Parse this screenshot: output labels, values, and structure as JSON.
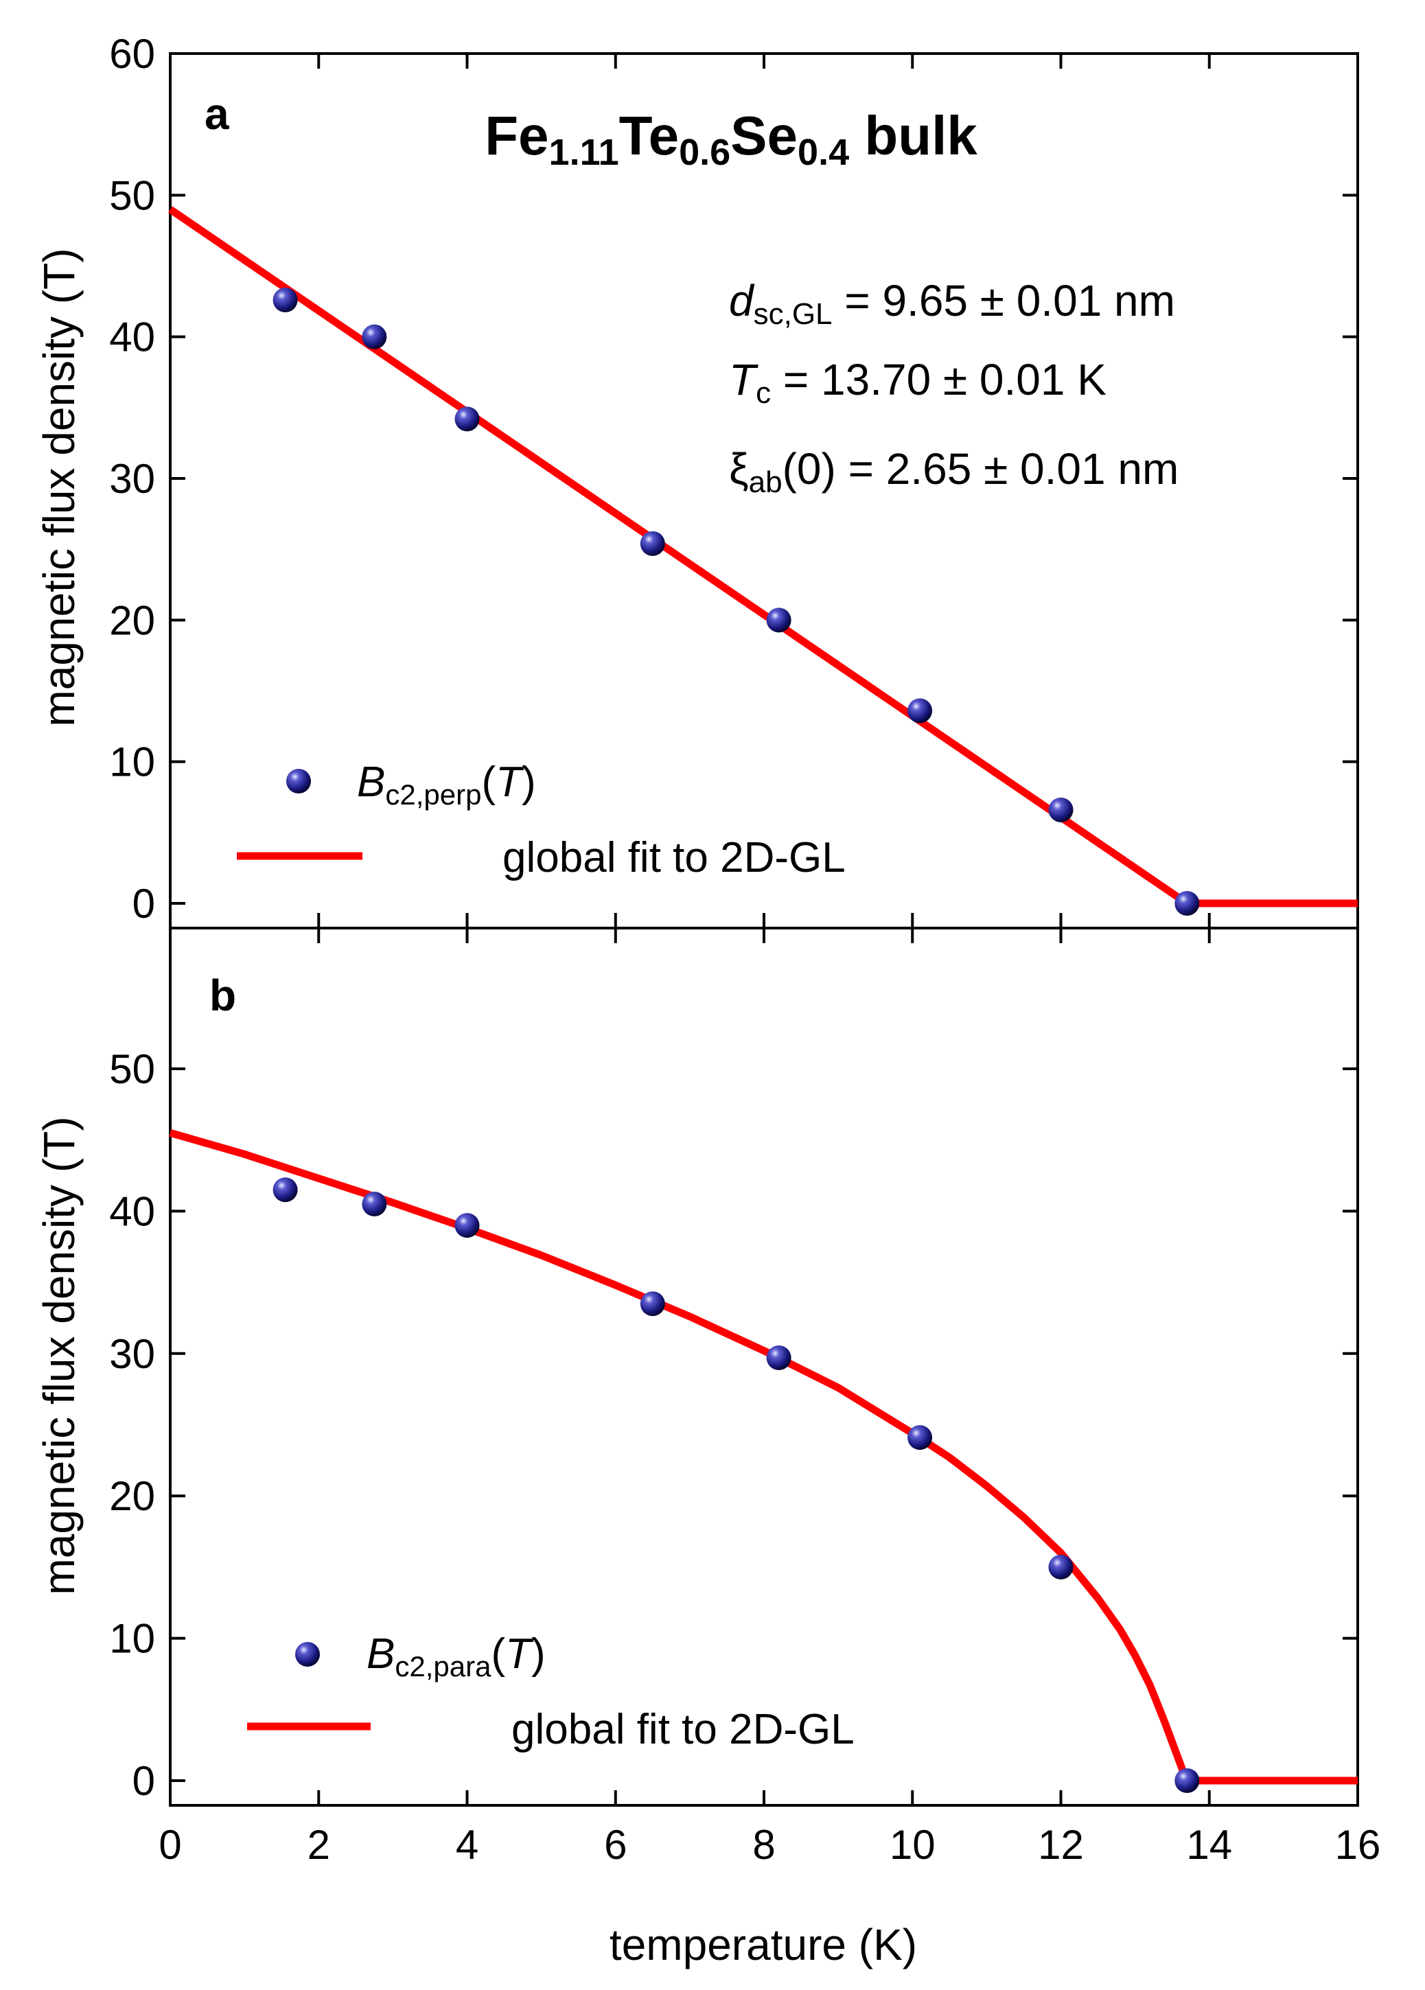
{
  "figure": {
    "title_parts": [
      {
        "text": "Fe",
        "sub": false
      },
      {
        "text": "1.11",
        "sub": true
      },
      {
        "text": "Te",
        "sub": false
      },
      {
        "text": "0.6",
        "sub": true
      },
      {
        "text": "Se",
        "sub": false
      },
      {
        "text": "0.4",
        "sub": true
      },
      {
        "text": " bulk",
        "sub": false
      }
    ],
    "xlabel": "temperature (K)",
    "ylabel": "magnetic flux density (T)",
    "fit_label": "global fit to 2D-GL",
    "annotations": [
      [
        {
          "text": "d",
          "italic": true
        },
        {
          "text": "sc,GL",
          "sub": true
        },
        {
          "text": " = 9.65 ± 0.01 nm"
        }
      ],
      [
        {
          "text": "T",
          "italic": true
        },
        {
          "text": "c",
          "sub": true
        },
        {
          "text": " = 13.70 ± 0.01 K"
        }
      ],
      [
        {
          "text": "ξ"
        },
        {
          "text": "ab",
          "sub": true
        },
        {
          "text": "(0) = 2.65 ± 0.01 nm"
        }
      ]
    ],
    "colors": {
      "points": "#1a1a80",
      "fit": "#ff0000"
    }
  },
  "chart_data": [
    {
      "type": "scatter",
      "panel": "a",
      "xlim": [
        0,
        16
      ],
      "ylim": [
        -2,
        60
      ],
      "xticks": [
        0,
        2,
        4,
        6,
        8,
        10,
        12,
        14,
        16
      ],
      "yticks": [
        0,
        10,
        20,
        30,
        40,
        50,
        60
      ],
      "series": [
        {
          "name_parts": [
            {
              "text": "B",
              "italic": true
            },
            {
              "text": "c2,perp",
              "sub": true
            },
            {
              "text": "("
            },
            {
              "text": "T",
              "italic": true
            },
            {
              "text": ")"
            }
          ],
          "kind": "points",
          "x": [
            1.55,
            2.75,
            4.0,
            6.5,
            8.2,
            10.1,
            12.0,
            13.7
          ],
          "y": [
            42.6,
            40.0,
            34.2,
            25.4,
            20.0,
            13.6,
            6.6,
            0.0
          ]
        },
        {
          "name": "global fit to 2D-GL",
          "kind": "line",
          "x": [
            0,
            13.7,
            16
          ],
          "y": [
            49.0,
            0.0,
            0.0
          ]
        }
      ],
      "legend_position": "bottom-left",
      "grid": false
    },
    {
      "type": "scatter",
      "panel": "b",
      "xlim": [
        0,
        16
      ],
      "ylim": [
        -2,
        58
      ],
      "xticks": [
        0,
        2,
        4,
        6,
        8,
        10,
        12,
        14,
        16
      ],
      "yticks": [
        0,
        10,
        20,
        30,
        40,
        50
      ],
      "series": [
        {
          "name_parts": [
            {
              "text": "B",
              "italic": true
            },
            {
              "text": "c2,para",
              "sub": true
            },
            {
              "text": "("
            },
            {
              "text": "T",
              "italic": true
            },
            {
              "text": ")"
            }
          ],
          "kind": "points",
          "x": [
            1.55,
            2.75,
            4.0,
            6.5,
            8.2,
            10.1,
            12.0,
            13.7
          ],
          "y": [
            41.5,
            40.5,
            39.0,
            33.5,
            29.7,
            24.1,
            15.0,
            0.0
          ]
        },
        {
          "name": "global fit to 2D-GL",
          "kind": "line",
          "x": [
            0,
            1,
            2,
            3,
            4,
            5,
            6,
            7,
            8,
            9,
            10,
            10.5,
            11,
            11.5,
            12,
            12.5,
            12.8,
            13.0,
            13.2,
            13.4,
            13.55,
            13.65,
            13.7,
            16
          ],
          "y": [
            45.5,
            44.0,
            42.3,
            40.6,
            38.8,
            36.9,
            34.8,
            32.6,
            30.2,
            27.6,
            24.4,
            22.7,
            20.7,
            18.5,
            16.0,
            12.8,
            10.6,
            8.8,
            6.7,
            4.1,
            2.0,
            0.6,
            0.0,
            0.0
          ]
        }
      ],
      "legend_position": "bottom-left",
      "grid": false
    }
  ]
}
